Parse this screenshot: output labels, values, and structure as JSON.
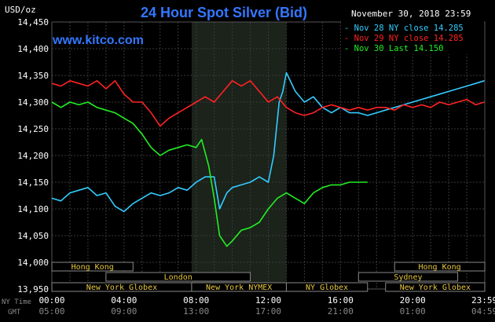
{
  "chart_data": {
    "type": "line",
    "title": "24 Hour Spot Silver (Bid)",
    "unit_label": "USD/oz",
    "watermark": "www.kitco.com",
    "timestamp": "November 30, 2018 23:59",
    "ylim": [
      13.95,
      14.45
    ],
    "y_ticks": [
      "14,450",
      "14,400",
      "14,350",
      "14,300",
      "14,250",
      "14,200",
      "14,150",
      "14,100",
      "14,050",
      "14,000",
      "13,950"
    ],
    "xlim": [
      0,
      24
    ],
    "x_ticks_ny": [
      "00:00",
      "04:00",
      "08:00",
      "12:00",
      "16:00",
      "20:00",
      "23:59"
    ],
    "x_ticks_gmt": [
      "05:00",
      "09:00",
      "13:00",
      "17:00",
      "21:00",
      "01:00",
      "04:59"
    ],
    "x_row_label_ny": "NY Time",
    "x_row_label_gmt": "GMT",
    "grid": true,
    "highlight_range": [
      7.75,
      13.0
    ],
    "legend_position": "top-right",
    "series": [
      {
        "name": "Nov 28 NY close 14.285",
        "color": "#33ccff",
        "x": [
          0,
          0.5,
          1,
          1.5,
          2,
          2.5,
          3,
          3.5,
          4,
          4.5,
          5,
          5.5,
          6,
          6.5,
          7,
          7.5,
          8,
          8.5,
          9,
          9.3,
          9.7,
          10,
          10.5,
          11,
          11.5,
          12,
          12.3,
          12.6,
          12.8,
          13,
          13.5,
          14,
          14.5,
          15,
          15.5,
          16,
          16.5,
          17,
          17.5,
          18,
          18.5,
          19,
          19.5,
          20,
          20.5,
          21,
          21.5,
          22,
          22.5,
          23,
          23.5,
          23.98
        ],
        "values": [
          14.12,
          14.115,
          14.13,
          14.135,
          14.14,
          14.125,
          14.13,
          14.105,
          14.095,
          14.11,
          14.12,
          14.13,
          14.125,
          14.13,
          14.14,
          14.135,
          14.15,
          14.16,
          14.16,
          14.1,
          14.13,
          14.14,
          14.145,
          14.15,
          14.16,
          14.15,
          14.2,
          14.3,
          14.32,
          14.355,
          14.32,
          14.3,
          14.31,
          14.29,
          14.28,
          14.29,
          14.28,
          14.28,
          14.275,
          14.28,
          14.285,
          14.29,
          14.295,
          14.3,
          14.305,
          14.31,
          14.315,
          14.32,
          14.325,
          14.33,
          14.335,
          14.34
        ]
      },
      {
        "name": "Nov 29 NY close 14.285",
        "color": "#ff2222",
        "x": [
          0,
          0.5,
          1,
          1.5,
          2,
          2.5,
          3,
          3.5,
          4,
          4.5,
          5,
          5.5,
          6,
          6.5,
          7,
          7.5,
          8,
          8.5,
          9,
          9.5,
          10,
          10.5,
          11,
          11.5,
          12,
          12.5,
          13,
          13.5,
          14,
          14.5,
          15,
          15.5,
          16,
          16.5,
          17,
          17.5,
          18,
          18.5,
          19,
          19.5,
          20,
          20.5,
          21,
          21.5,
          22,
          22.5,
          23,
          23.5,
          23.98
        ],
        "values": [
          14.335,
          14.33,
          14.34,
          14.335,
          14.33,
          14.34,
          14.325,
          14.34,
          14.315,
          14.3,
          14.3,
          14.28,
          14.255,
          14.27,
          14.28,
          14.29,
          14.3,
          14.31,
          14.3,
          14.32,
          14.34,
          14.33,
          14.34,
          14.32,
          14.3,
          14.31,
          14.29,
          14.28,
          14.275,
          14.28,
          14.29,
          14.295,
          14.29,
          14.285,
          14.29,
          14.285,
          14.29,
          14.29,
          14.285,
          14.295,
          14.29,
          14.295,
          14.29,
          14.3,
          14.295,
          14.3,
          14.305,
          14.295,
          14.3
        ]
      },
      {
        "name": "Nov 30 Last 14.150",
        "color": "#22ee22",
        "x": [
          0,
          0.5,
          1,
          1.5,
          2,
          2.5,
          3,
          3.5,
          4,
          4.5,
          5,
          5.5,
          6,
          6.5,
          7,
          7.5,
          8,
          8.3,
          8.7,
          9,
          9.3,
          9.7,
          10,
          10.5,
          11,
          11.5,
          12,
          12.5,
          13,
          13.5,
          14,
          14.5,
          15,
          15.5,
          16,
          16.5,
          17,
          17.5
        ],
        "values": [
          14.3,
          14.29,
          14.3,
          14.295,
          14.3,
          14.29,
          14.285,
          14.28,
          14.27,
          14.26,
          14.24,
          14.215,
          14.2,
          14.21,
          14.215,
          14.22,
          14.215,
          14.23,
          14.18,
          14.12,
          14.05,
          14.03,
          14.04,
          14.06,
          14.065,
          14.075,
          14.1,
          14.12,
          14.13,
          14.12,
          14.11,
          14.13,
          14.14,
          14.145,
          14.145,
          14.15,
          14.15,
          14.15
        ]
      }
    ],
    "market_rows": [
      {
        "y": 0,
        "segments": [
          {
            "label": "Hong Kong",
            "start": 0,
            "end": 4.5
          },
          {
            "label": "Hong Kong",
            "start": 19,
            "end": 24
          }
        ]
      },
      {
        "y": 1,
        "segments": [
          {
            "label": "London",
            "start": 3,
            "end": 11
          },
          {
            "label": "Sydney",
            "start": 17,
            "end": 22.5
          }
        ]
      },
      {
        "y": 2,
        "segments": [
          {
            "label": "New York Globex",
            "start": 0,
            "end": 7.75
          },
          {
            "label": "New York NYMEX",
            "start": 7.75,
            "end": 13.0
          },
          {
            "label": "NY Globex",
            "start": 13.0,
            "end": 17.5
          },
          {
            "label": "New York Globex",
            "start": 18.5,
            "end": 24
          }
        ]
      }
    ]
  }
}
